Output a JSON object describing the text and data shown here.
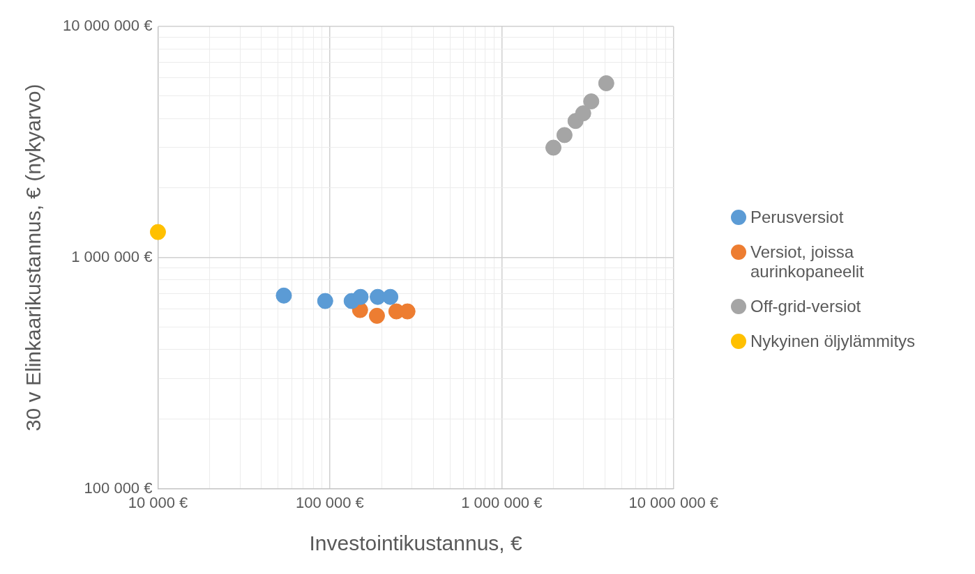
{
  "chart_data": {
    "type": "scatter",
    "xlabel": "Investointikustannus, €",
    "ylabel": "30 v Elinkaarikustannus, € (nykyarvo)",
    "series": [
      {
        "name": "Perusversiot",
        "color": "#5b9bd5",
        "x": [
          54000,
          94000,
          134000,
          151000,
          190000,
          225000
        ],
        "values": [
          685000,
          649000,
          649000,
          676000,
          676000,
          676000
        ]
      },
      {
        "name": "Versiot, joissa aurinkopaneelit",
        "color": "#ed7d31",
        "x": [
          150000,
          188000,
          244000,
          283000
        ],
        "values": [
          593000,
          560000,
          585000,
          585000
        ]
      },
      {
        "name": "Off-grid-versiot",
        "color": "#a5a5a5",
        "x": [
          2000000,
          2320000,
          2690000,
          2980000,
          3320000,
          4060000
        ],
        "values": [
          2990000,
          3390000,
          3900000,
          4210000,
          4740000,
          5680000
        ]
      },
      {
        "name": "Nykyinen öljylämmitys",
        "color": "#ffc000",
        "x": [
          10000
        ],
        "values": [
          1290000
        ]
      }
    ],
    "log": "xy",
    "xlim": [
      10000,
      10000000
    ],
    "ylim": [
      100000,
      10000000
    ],
    "xticks": [
      {
        "value": 10000,
        "label": "10 000 €"
      },
      {
        "value": 100000,
        "label": "100 000 €"
      },
      {
        "value": 1000000,
        "label": "1 000 000 €"
      },
      {
        "value": 10000000,
        "label": "10 000 000 €"
      }
    ],
    "yticks": [
      {
        "value": 100000,
        "label": "100 000 €"
      },
      {
        "value": 1000000,
        "label": "1 000 000 €"
      },
      {
        "value": 10000000,
        "label": "10 000 000 €"
      }
    ],
    "grid": true,
    "legend": "right",
    "marker": "circle"
  }
}
